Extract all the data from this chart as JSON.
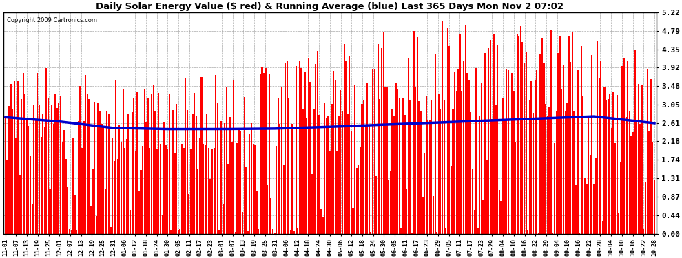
{
  "title": "Daily Solar Energy Value ($ red) & Running Average (blue) Last 365 Days Mon Nov 2 07:02",
  "copyright_text": "Copyright 2009 Cartronics.com",
  "bar_color": "#ff0000",
  "avg_line_color": "#0000cc",
  "background_color": "#ffffff",
  "plot_bg_color": "#ffffff",
  "grid_color": "#aaaaaa",
  "yticks": [
    0.0,
    0.44,
    0.87,
    1.31,
    1.74,
    2.18,
    2.61,
    3.05,
    3.48,
    3.92,
    4.35,
    4.79,
    5.22
  ],
  "ylim": [
    0.0,
    5.22
  ],
  "x_labels": [
    "11-01",
    "11-07",
    "11-13",
    "11-19",
    "11-25",
    "12-01",
    "12-07",
    "12-13",
    "12-19",
    "12-25",
    "12-31",
    "01-06",
    "01-12",
    "01-18",
    "01-24",
    "01-30",
    "02-05",
    "02-11",
    "02-17",
    "02-23",
    "03-01",
    "03-07",
    "03-13",
    "03-19",
    "03-25",
    "03-31",
    "04-06",
    "04-12",
    "04-18",
    "04-24",
    "04-30",
    "05-06",
    "05-12",
    "05-18",
    "05-24",
    "05-30",
    "06-05",
    "06-11",
    "06-17",
    "06-23",
    "06-29",
    "07-05",
    "07-11",
    "07-17",
    "07-23",
    "07-29",
    "08-04",
    "08-10",
    "08-16",
    "08-22",
    "08-29",
    "09-04",
    "09-10",
    "09-16",
    "09-22",
    "09-28",
    "10-04",
    "10-10",
    "10-16",
    "10-22",
    "10-28"
  ],
  "avg_line_points_x": [
    0,
    30,
    60,
    90,
    120,
    150,
    180,
    210,
    240,
    270,
    300,
    330,
    364
  ],
  "avg_line_points_y": [
    2.75,
    2.65,
    2.5,
    2.47,
    2.47,
    2.48,
    2.52,
    2.57,
    2.62,
    2.67,
    2.72,
    2.77,
    2.61
  ],
  "figsize": [
    9.9,
    3.75
  ],
  "dpi": 100
}
